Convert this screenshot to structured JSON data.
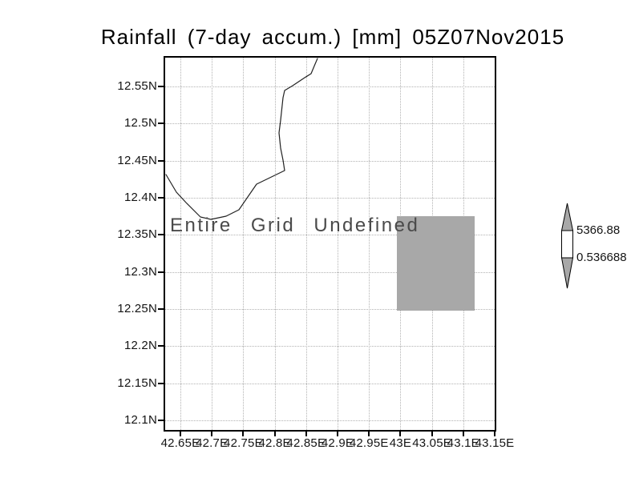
{
  "title": "Rainfall (7-day accum.) [mm] 05Z07Nov2015",
  "map": {
    "undefined_label": "Entire Grid Undefined"
  },
  "axes": {
    "y_ticks": [
      {
        "label": "12.55N",
        "pct": 7.74
      },
      {
        "label": "12.5N",
        "pct": 17.71
      },
      {
        "label": "12.45N",
        "pct": 27.67
      },
      {
        "label": "12.4N",
        "pct": 37.63
      },
      {
        "label": "12.35N",
        "pct": 47.6
      },
      {
        "label": "12.3N",
        "pct": 57.56
      },
      {
        "label": "12.25N",
        "pct": 67.52
      },
      {
        "label": "12.2N",
        "pct": 77.48
      },
      {
        "label": "12.15N",
        "pct": 87.45
      },
      {
        "label": "12.1N",
        "pct": 97.41
      }
    ],
    "x_ticks": [
      {
        "label": "42.65E",
        "pct": 4.62
      },
      {
        "label": "42.7E",
        "pct": 14.16
      },
      {
        "label": "42.75E",
        "pct": 23.7
      },
      {
        "label": "42.8E",
        "pct": 33.24
      },
      {
        "label": "42.85E",
        "pct": 42.77
      },
      {
        "label": "42.9E",
        "pct": 52.31
      },
      {
        "label": "42.95E",
        "pct": 61.85
      },
      {
        "label": "43E",
        "pct": 71.39
      },
      {
        "label": "43.05E",
        "pct": 80.93
      },
      {
        "label": "43.1E",
        "pct": 90.46
      },
      {
        "label": "43.15E",
        "pct": 100.0
      }
    ]
  },
  "colorbar": {
    "top_value": "5366.88",
    "bottom_value": "0.536688"
  },
  "colors": {
    "background": "#ffffff",
    "frame": "#000000",
    "grid": "#b2b2b2",
    "coast": "#222222",
    "shade": "#a8a8a8",
    "colorbar_mid": "#ffffff",
    "undef_text": "#4a4a4a",
    "label": "#141414"
  },
  "chart_data": {
    "type": "heatmap",
    "title": "Rainfall (7-day accum.) [mm] 05Z07Nov2015",
    "variable": "Rainfall (7-day accum.)",
    "units": "mm",
    "valid_time": "05Z07Nov2015",
    "x_tick_labels": [
      "42.65E",
      "42.7E",
      "42.75E",
      "42.8E",
      "42.85E",
      "42.9E",
      "42.95E",
      "43E",
      "43.05E",
      "43.1E",
      "43.15E"
    ],
    "y_tick_labels": [
      "12.55N",
      "12.5N",
      "12.45N",
      "12.4N",
      "12.35N",
      "12.3N",
      "12.25N",
      "12.2N",
      "12.15N",
      "12.1N"
    ],
    "xlim": [
      "42.65E",
      "43.15E"
    ],
    "ylim": [
      "12.1N",
      "12.55N"
    ],
    "grid": true,
    "annotation": "Entire Grid Undefined",
    "legend_position": "right",
    "colorbar_range": [
      0.536688,
      5366.88
    ],
    "shaded_cell": {
      "lon_range": [
        "43E",
        "43.125E"
      ],
      "lat_range": [
        "12.25N",
        "12.375N"
      ],
      "color": "#a8a8a8"
    },
    "coastline_shown": true
  }
}
